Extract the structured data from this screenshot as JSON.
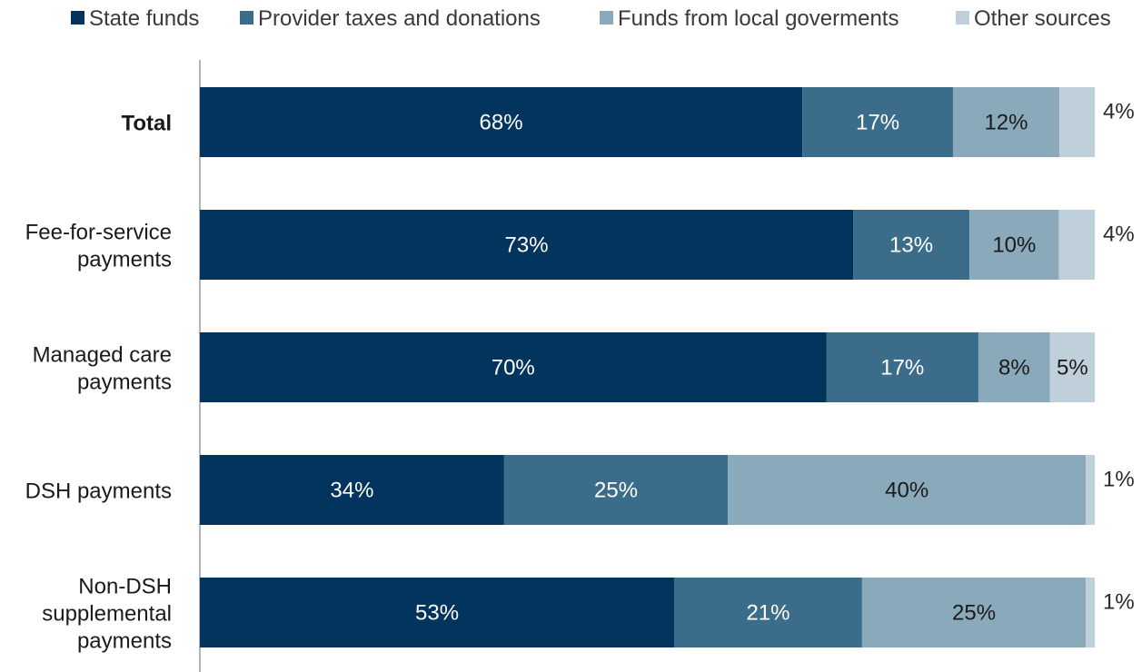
{
  "chart_data": {
    "type": "bar",
    "orientation": "horizontal",
    "stacked": true,
    "title": "",
    "xlabel": "",
    "ylabel": "",
    "xlim": [
      0,
      100
    ],
    "grid": false,
    "legend_position": "top",
    "categories": [
      {
        "label": [
          "Total"
        ],
        "bold": true
      },
      {
        "label": [
          "Fee-for-service",
          "payments"
        ],
        "bold": false
      },
      {
        "label": [
          "Managed care",
          "payments"
        ],
        "bold": false
      },
      {
        "label": [
          "DSH payments"
        ],
        "bold": false
      },
      {
        "label": [
          "Non-DSH",
          "supplemental",
          "payments"
        ],
        "bold": false
      }
    ],
    "series": [
      {
        "name": "State funds",
        "color": "#02345e",
        "label_color": "#ffffff",
        "values": [
          68,
          73,
          70,
          34,
          53
        ],
        "labels": [
          "68%",
          "73%",
          "70%",
          "34%",
          "53%"
        ]
      },
      {
        "name": "Provider taxes and donations",
        "color": "#3b6d8a",
        "label_color": "#ffffff",
        "values": [
          17,
          13,
          17,
          25,
          21
        ],
        "labels": [
          "17%",
          "13%",
          "17%",
          "25%",
          "21%"
        ]
      },
      {
        "name": "Funds from local goverments",
        "color": "#8aaabb",
        "label_color": "#1a1a1a",
        "values": [
          12,
          10,
          8,
          40,
          25
        ],
        "labels": [
          "12%",
          "10%",
          "8%",
          "40%",
          "25%"
        ]
      },
      {
        "name": "Other sources",
        "color": "#bfd0da",
        "label_color": "#1a1a1a",
        "values": [
          4,
          4,
          5,
          1,
          1
        ],
        "labels": [
          "4%",
          "4%",
          "5%",
          "1%",
          "1%"
        ],
        "label_outside": [
          true,
          true,
          false,
          true,
          true
        ]
      }
    ]
  }
}
